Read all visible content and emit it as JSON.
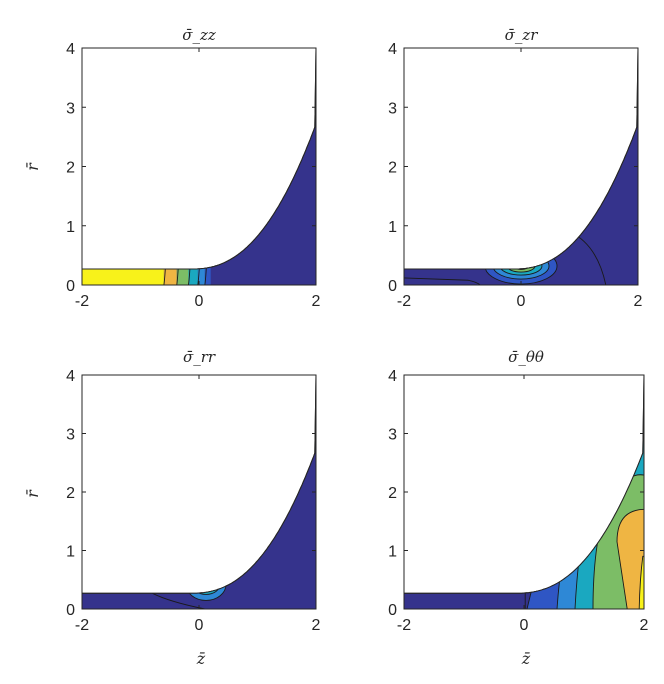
{
  "chart_data": [
    {
      "type": "contour",
      "title": "σ̄_zz",
      "xlabel": "",
      "ylabel": "r̄",
      "xlim": [
        -2,
        2
      ],
      "ylim": [
        0,
        4
      ],
      "xticks": [
        "-2",
        "0",
        "2"
      ],
      "yticks": [
        "0",
        "1",
        "2",
        "3",
        "4"
      ],
      "colormap": "parula",
      "feature": "Stress concentrated along the thin neck for z < 0; bands fade from yellow to dark blue between z ≈ -0.6 and z ≈ 0.2"
    },
    {
      "type": "contour",
      "title": "σ̄_zr",
      "xlabel": "",
      "ylabel": "",
      "xlim": [
        -2,
        2
      ],
      "ylim": [
        0,
        4
      ],
      "xticks": [
        "-2",
        "0",
        "2"
      ],
      "yticks": [
        "0",
        "1",
        "2",
        "3",
        "4"
      ],
      "colormap": "parula",
      "feature": "Nested elliptical contours centred near (z, r) ≈ (0, 0.3)"
    },
    {
      "type": "contour",
      "title": "σ̄_rr",
      "xlabel": "z̄",
      "ylabel": "r̄",
      "xlim": [
        -2,
        2
      ],
      "ylim": [
        0,
        4
      ],
      "xticks": [
        "-2",
        "0",
        "2"
      ],
      "yticks": [
        "0",
        "1",
        "2",
        "3",
        "4"
      ],
      "colormap": "parula",
      "feature": "Small contour concentration near (z, r) ≈ (0.1, 0.4)"
    },
    {
      "type": "contour",
      "title": "σ̄_θθ",
      "xlabel": "z̄",
      "ylabel": "",
      "xlim": [
        -2,
        2
      ],
      "ylim": [
        0,
        4
      ],
      "xticks": [
        "-2",
        "0",
        "2"
      ],
      "yticks": [
        "0",
        "1",
        "2",
        "3",
        "4"
      ],
      "colormap": "parula",
      "feature": "Broad banded contours increasing toward large z, peak (orange/yellow) near z ≈ 1.8, r ≈ 1"
    }
  ],
  "colors": {
    "background": "#ffffff",
    "low": "#35338c",
    "level2": "#2f56c4",
    "level3": "#2e88d6",
    "level4": "#1aa8c0",
    "level5": "#7cbd66",
    "level6": "#efb543",
    "high": "#f8f21a"
  }
}
